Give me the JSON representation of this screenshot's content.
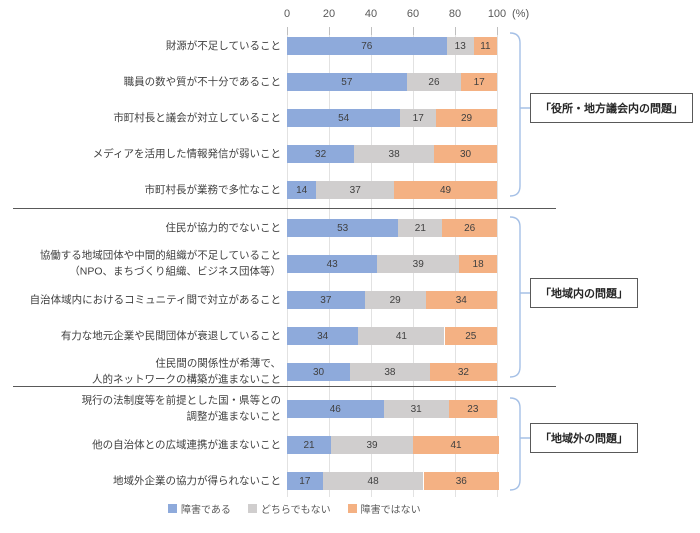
{
  "chart_data": {
    "type": "bar",
    "stacked": true,
    "orientation": "horizontal",
    "axis": {
      "ticks": [
        "0",
        "20",
        "40",
        "60",
        "80",
        "100"
      ],
      "unit_label": "(%)",
      "min": 0,
      "max": 100,
      "grid": true
    },
    "legend_position": "bottom",
    "series_colors": [
      "#8EAADB",
      "#D0CECE",
      "#F4B183"
    ],
    "series": [
      {
        "name": "障害である",
        "color": "#8EAADB"
      },
      {
        "name": "どちらでもない",
        "color": "#D0CECE"
      },
      {
        "name": "障害ではない",
        "color": "#F4B183"
      }
    ],
    "groups": [
      {
        "label": "「役所・地方議会内の問題」",
        "rows": [
          {
            "category": [
              "財源が不足していること"
            ],
            "values": [
              76,
              13,
              11
            ]
          },
          {
            "category": [
              "職員の数や質が不十分であること"
            ],
            "values": [
              57,
              26,
              17
            ]
          },
          {
            "category": [
              "市町村長と議会が対立していること"
            ],
            "values": [
              54,
              17,
              29
            ]
          },
          {
            "category": [
              "メディアを活用した情報発信が弱いこと"
            ],
            "values": [
              32,
              38,
              30
            ]
          },
          {
            "category": [
              "市町村長が業務で多忙なこと"
            ],
            "values": [
              14,
              37,
              49
            ]
          }
        ]
      },
      {
        "label": "「地域内の問題」",
        "rows": [
          {
            "category": [
              "住民が協力的でないこと"
            ],
            "values": [
              53,
              21,
              26
            ]
          },
          {
            "category": [
              "協働する地域団体や中間的組織が不足していること",
              "（NPO、まちづくり組織、ビジネス団体等）"
            ],
            "values": [
              43,
              39,
              18
            ]
          },
          {
            "category": [
              "自治体域内におけるコミュニティ間で対立があること"
            ],
            "values": [
              37,
              29,
              34
            ]
          },
          {
            "category": [
              "有力な地元企業や民間団体が衰退していること"
            ],
            "values": [
              34,
              41,
              25
            ]
          },
          {
            "category": [
              "住民間の関係性が希薄で、",
              "人的ネットワークの構築が進まないこと"
            ],
            "values": [
              30,
              38,
              32
            ]
          }
        ]
      },
      {
        "label": "「地域外の問題」",
        "rows": [
          {
            "category": [
              "現行の法制度等を前提とした国・県等との",
              "調整が進まないこと"
            ],
            "values": [
              46,
              31,
              23
            ]
          },
          {
            "category": [
              "他の自治体との広域連携が進まないこと"
            ],
            "values": [
              21,
              39,
              41
            ]
          },
          {
            "category": [
              "地域外企業の協力が得られないこと"
            ],
            "values": [
              17,
              48,
              36
            ]
          }
        ]
      }
    ]
  }
}
